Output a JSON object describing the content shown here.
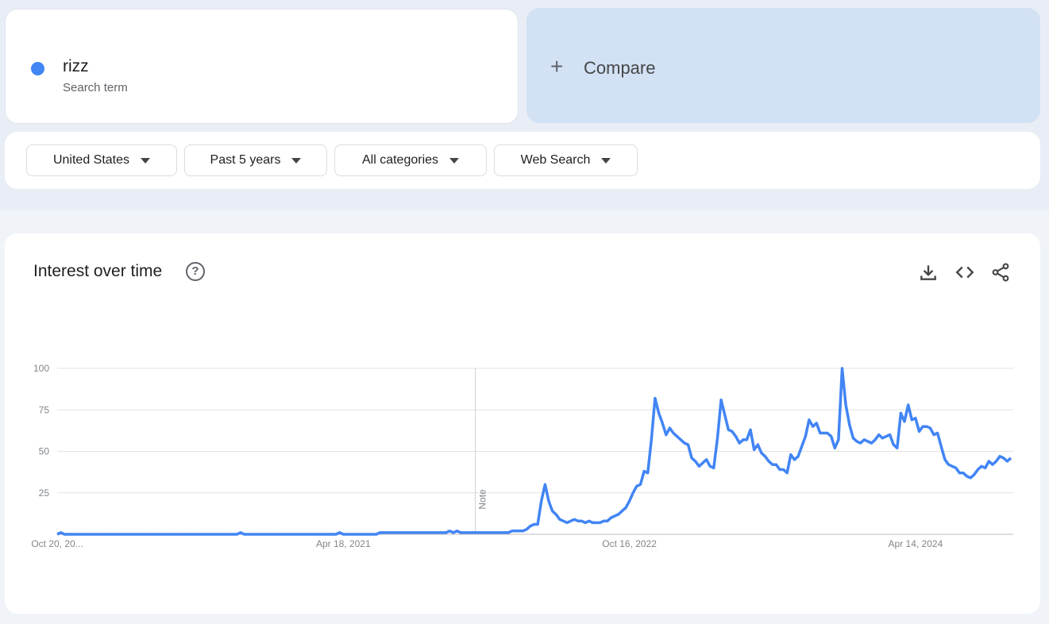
{
  "search_term": {
    "name": "rizz",
    "subtitle": "Search term",
    "color": "#4285f4"
  },
  "compare": {
    "label": "Compare",
    "icon": "plus-icon"
  },
  "filters": [
    {
      "label": "United States"
    },
    {
      "label": "Past 5 years"
    },
    {
      "label": "All categories"
    },
    {
      "label": "Web Search"
    }
  ],
  "interest": {
    "title": "Interest over time",
    "help_icon": "?",
    "actions": [
      "download-icon",
      "embed-code-icon",
      "share-icon"
    ]
  },
  "chart_data": {
    "type": "line",
    "title": "Interest over time",
    "start_date": "2019-10-20",
    "interval": "week",
    "x_tick_labels": [
      "Oct 20, 20...",
      "Apr 18, 2021",
      "Oct 16, 2022",
      "Apr 14, 2024"
    ],
    "y_ticks": [
      25,
      50,
      75,
      100
    ],
    "ylim": [
      0,
      100
    ],
    "grid": true,
    "annotation": {
      "label": "Note",
      "date": "2021-12-26"
    },
    "series_color": "#4285f4",
    "values": [
      0,
      1,
      0,
      0,
      0,
      0,
      0,
      0,
      0,
      0,
      0,
      0,
      0,
      0,
      0,
      0,
      0,
      0,
      0,
      0,
      0,
      0,
      0,
      0,
      0,
      0,
      0,
      0,
      0,
      0,
      0,
      0,
      0,
      0,
      0,
      0,
      0,
      0,
      0,
      0,
      0,
      0,
      0,
      0,
      0,
      0,
      0,
      0,
      0,
      0,
      1,
      0,
      0,
      0,
      0,
      0,
      0,
      0,
      0,
      0,
      0,
      0,
      0,
      0,
      0,
      0,
      0,
      0,
      0,
      0,
      0,
      0,
      0,
      0,
      0,
      0,
      0,
      1,
      0,
      0,
      0,
      0,
      0,
      0,
      0,
      0,
      0,
      0,
      1,
      1,
      1,
      1,
      1,
      1,
      1,
      1,
      1,
      1,
      1,
      1,
      1,
      1,
      1,
      1,
      1,
      1,
      1,
      2,
      1,
      2,
      1,
      1,
      1,
      1,
      1,
      1,
      1,
      1,
      1,
      1,
      1,
      1,
      1,
      1,
      2,
      2,
      2,
      2,
      3,
      5,
      6,
      6,
      20,
      30,
      20,
      14,
      12,
      9,
      8,
      7,
      8,
      9,
      8,
      8,
      7,
      8,
      7,
      7,
      7,
      8,
      8,
      10,
      11,
      12,
      14,
      16,
      20,
      25,
      29,
      30,
      38,
      37,
      57,
      82,
      73,
      67,
      60,
      64,
      61,
      59,
      57,
      55,
      54,
      46,
      44,
      41,
      43,
      45,
      41,
      40,
      58,
      81,
      72,
      63,
      62,
      59,
      55,
      57,
      57,
      63,
      51,
      54,
      49,
      47,
      44,
      42,
      42,
      39,
      39,
      37,
      48,
      45,
      47,
      53,
      59,
      69,
      65,
      67,
      61,
      61,
      61,
      59,
      52,
      57,
      100,
      78,
      66,
      58,
      56,
      55,
      57,
      56,
      55,
      57,
      60,
      58,
      59,
      60,
      54,
      52,
      73,
      68,
      78,
      69,
      70,
      62,
      65,
      65,
      64,
      60,
      61,
      53,
      45,
      42,
      41,
      40,
      37,
      37,
      35,
      34,
      36,
      39,
      41,
      40,
      44,
      42,
      44,
      47,
      46,
      44,
      46
    ]
  }
}
